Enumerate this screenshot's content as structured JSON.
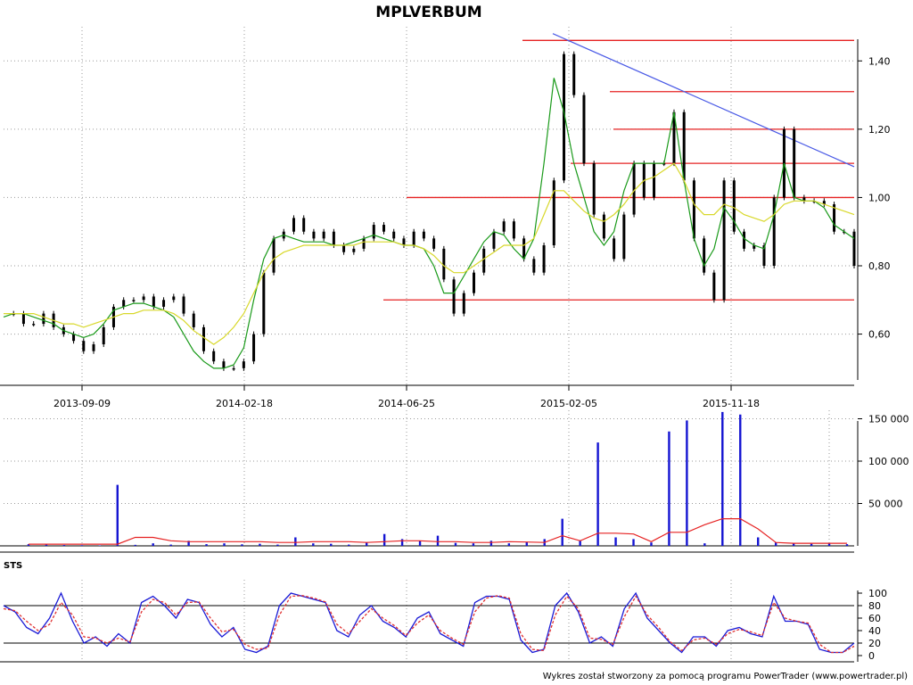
{
  "chart_data": [
    {
      "type": "line",
      "title": "MPLVERBUM",
      "x_tick_labels": [
        "2013-09-09",
        "2014-02-18",
        "2014-06-25",
        "2015-02-05",
        "2015-11-18"
      ],
      "y_tick_labels": [
        "0,60",
        "0,80",
        "1,00",
        "1,20",
        "1,40"
      ],
      "ylim": [
        0.45,
        1.5
      ],
      "grid": true,
      "series": [
        {
          "color": "#000000",
          "values": [
            0.66,
            0.66,
            0.63,
            0.63,
            0.66,
            0.62,
            0.6,
            0.58,
            0.55,
            0.57,
            0.62,
            0.68,
            0.7,
            0.7,
            0.71,
            0.68,
            0.7,
            0.71,
            0.66,
            0.62,
            0.55,
            0.52,
            0.5,
            0.5,
            0.52,
            0.6,
            0.78,
            0.88,
            0.9,
            0.94,
            0.9,
            0.88,
            0.9,
            0.86,
            0.84,
            0.85,
            0.88,
            0.92,
            0.9,
            0.88,
            0.86,
            0.9,
            0.88,
            0.85,
            0.76,
            0.66,
            0.72,
            0.78,
            0.85,
            0.9,
            0.93,
            0.88,
            0.82,
            0.78,
            0.86,
            1.05,
            1.42,
            1.3,
            1.1,
            0.95,
            0.88,
            0.82,
            0.95,
            1.1,
            1.0,
            1.1,
            1.1,
            1.25,
            1.05,
            0.88,
            0.78,
            0.7,
            1.05,
            0.9,
            0.85,
            0.86,
            0.8,
            1.0,
            1.2,
            1.0,
            0.99,
            0.99,
            0.98,
            0.9,
            0.9,
            0.8
          ]
        },
        {
          "color": "#1a9a1a",
          "values": [
            0.65,
            0.66,
            0.66,
            0.65,
            0.64,
            0.63,
            0.61,
            0.6,
            0.59,
            0.6,
            0.63,
            0.67,
            0.68,
            0.69,
            0.69,
            0.68,
            0.67,
            0.65,
            0.6,
            0.55,
            0.52,
            0.5,
            0.5,
            0.51,
            0.56,
            0.7,
            0.82,
            0.88,
            0.89,
            0.88,
            0.87,
            0.87,
            0.87,
            0.86,
            0.86,
            0.87,
            0.88,
            0.89,
            0.88,
            0.87,
            0.86,
            0.86,
            0.85,
            0.8,
            0.72,
            0.72,
            0.77,
            0.82,
            0.87,
            0.9,
            0.89,
            0.85,
            0.82,
            0.88,
            1.1,
            1.35,
            1.25,
            1.1,
            1.0,
            0.9,
            0.86,
            0.9,
            1.02,
            1.1,
            1.1,
            1.1,
            1.1,
            1.25,
            1.05,
            0.88,
            0.8,
            0.85,
            0.97,
            0.93,
            0.88,
            0.86,
            0.85,
            0.95,
            1.1,
            1.0,
            0.99,
            0.99,
            0.97,
            0.92,
            0.9,
            0.88
          ]
        },
        {
          "color": "#d8d82a",
          "values": [
            0.66,
            0.66,
            0.66,
            0.66,
            0.65,
            0.64,
            0.63,
            0.63,
            0.62,
            0.63,
            0.64,
            0.65,
            0.66,
            0.66,
            0.67,
            0.67,
            0.67,
            0.66,
            0.64,
            0.61,
            0.59,
            0.57,
            0.59,
            0.62,
            0.66,
            0.72,
            0.78,
            0.82,
            0.84,
            0.85,
            0.86,
            0.86,
            0.86,
            0.86,
            0.86,
            0.86,
            0.87,
            0.87,
            0.87,
            0.87,
            0.86,
            0.86,
            0.85,
            0.83,
            0.8,
            0.78,
            0.78,
            0.8,
            0.82,
            0.84,
            0.86,
            0.86,
            0.86,
            0.88,
            0.95,
            1.02,
            1.02,
            0.99,
            0.96,
            0.94,
            0.93,
            0.95,
            0.98,
            1.02,
            1.05,
            1.06,
            1.08,
            1.1,
            1.05,
            0.98,
            0.95,
            0.95,
            0.98,
            0.97,
            0.95,
            0.94,
            0.93,
            0.95,
            0.98,
            0.99,
            0.99,
            0.99,
            0.98,
            0.97,
            0.96,
            0.95
          ]
        }
      ],
      "horizontal_lines": [
        1.46,
        1.31,
        1.2,
        1.1,
        1.0,
        0.7
      ],
      "trend_line": {
        "from": 1.48,
        "to": 1.09
      }
    },
    {
      "type": "bar",
      "y_tick_labels": [
        "50 000",
        "100 000",
        "150 000"
      ],
      "ylim": [
        0,
        160000
      ],
      "values": [
        2000,
        1500,
        1000,
        800,
        500,
        72000,
        1200,
        3000,
        1500,
        6000,
        2000,
        3000,
        1800,
        2500,
        1500,
        10000,
        3000,
        2500,
        1500,
        4000,
        14000,
        8000,
        6000,
        12000,
        3500,
        3000,
        6000,
        3000,
        4500,
        8000,
        32000,
        6000,
        122000,
        10000,
        8000,
        4000,
        135000,
        148000,
        3000,
        158000,
        155000,
        10000,
        4000,
        3000,
        2500,
        3000,
        2000
      ],
      "average_line": [
        2000,
        2000,
        2000,
        2000,
        2000,
        2000,
        10000,
        10000,
        6000,
        5000,
        5000,
        5000,
        5000,
        5000,
        4000,
        4000,
        5000,
        5000,
        5000,
        4000,
        5000,
        6000,
        6000,
        5000,
        5000,
        4000,
        4000,
        5000,
        4500,
        4000,
        12000,
        6000,
        15000,
        15000,
        14000,
        5000,
        16000,
        16000,
        25000,
        32000,
        32000,
        20000,
        4000,
        3000,
        3000,
        3000,
        3000
      ]
    },
    {
      "type": "line",
      "label": "STS",
      "y_tick_labels": [
        "0",
        "20",
        "40",
        "60",
        "80",
        "100"
      ],
      "ylim": [
        0,
        100
      ],
      "reference_lines": [
        20,
        80
      ],
      "series": [
        {
          "color": "#1a1ad6",
          "values": [
            80,
            70,
            45,
            35,
            60,
            100,
            55,
            20,
            30,
            15,
            35,
            20,
            85,
            95,
            80,
            60,
            90,
            85,
            50,
            30,
            45,
            10,
            5,
            15,
            80,
            100,
            95,
            90,
            85,
            40,
            30,
            65,
            80,
            55,
            45,
            30,
            60,
            70,
            35,
            25,
            15,
            85,
            95,
            95,
            90,
            25,
            5,
            10,
            80,
            100,
            70,
            20,
            30,
            15,
            75,
            100,
            60,
            40,
            20,
            5,
            30,
            30,
            15,
            40,
            45,
            35,
            30,
            95,
            55,
            55,
            50,
            10,
            5,
            5,
            20
          ]
        },
        {
          "color": "#e03030",
          "values": [
            75,
            72,
            55,
            40,
            50,
            85,
            65,
            30,
            28,
            20,
            28,
            22,
            70,
            90,
            85,
            65,
            85,
            86,
            60,
            38,
            42,
            18,
            10,
            12,
            65,
            95,
            96,
            92,
            86,
            50,
            35,
            55,
            75,
            60,
            48,
            32,
            52,
            65,
            40,
            28,
            18,
            70,
            92,
            96,
            92,
            35,
            10,
            8,
            65,
            95,
            75,
            28,
            26,
            18,
            62,
            95,
            65,
            45,
            22,
            8,
            25,
            28,
            18,
            35,
            42,
            38,
            32,
            85,
            60,
            55,
            52,
            18,
            5,
            5,
            15
          ]
        }
      ]
    }
  ],
  "footer": {
    "credit": "Wykres został stworzony za pomocą programu PowerTrader (www.powertrader.pl)"
  },
  "colors": {
    "price_hlines": "#e62222",
    "trend_line": "#4a5ae6",
    "volume_bars": "#1414d2",
    "volume_avg": "#e62222"
  }
}
